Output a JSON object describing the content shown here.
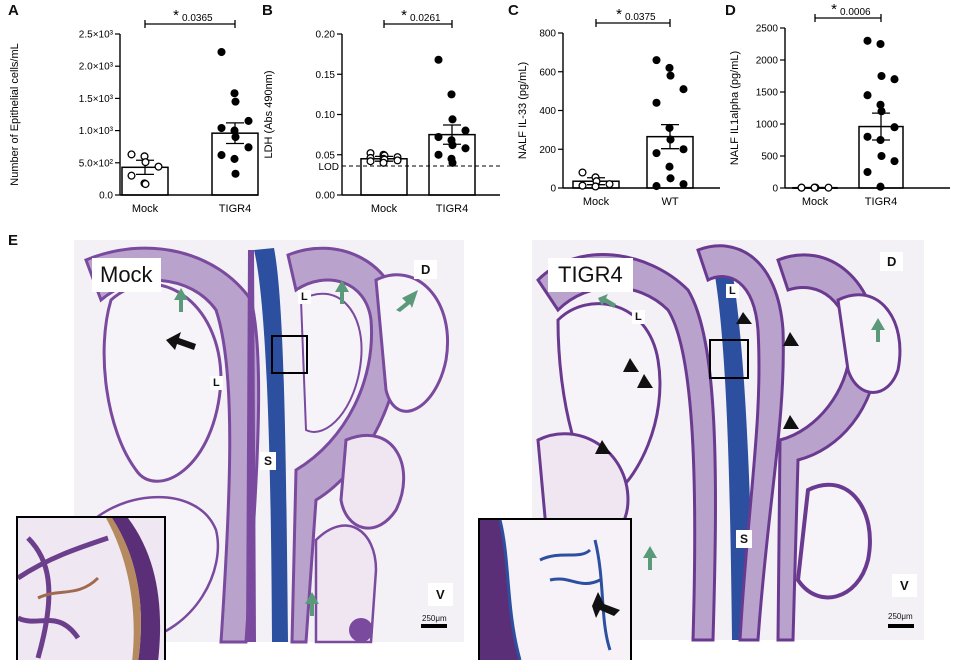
{
  "panel_letters": {
    "a": "A",
    "b": "B",
    "c": "C",
    "d": "D",
    "e": "E"
  },
  "chart_data": [
    {
      "type": "bar",
      "panel": "A",
      "ylabel": "Number of Epithelial cells/mL",
      "categories": [
        "Mock",
        "TIGR4"
      ],
      "ytick_labels": [
        "0.0",
        "5.0×10²",
        "1.0×10³",
        "1.5×10³",
        "2.0×10³",
        "2.5×10³"
      ],
      "yticks": [
        0,
        500,
        1000,
        1500,
        2000,
        2500
      ],
      "ylim": [
        0,
        2500
      ],
      "means": [
        430,
        960
      ],
      "sem": [
        110,
        160
      ],
      "points": [
        [
          630,
          600,
          510,
          440,
          300,
          180,
          170
        ],
        [
          2220,
          1580,
          1450,
          1150,
          1040,
          1000,
          900,
          740,
          620,
          560,
          330
        ]
      ],
      "sig_star": "*",
      "sig_p": "0.0365"
    },
    {
      "type": "bar",
      "panel": "B",
      "ylabel": "LDH (Abs 490nm)",
      "categories": [
        "Mock",
        "TIGR4"
      ],
      "ytick_labels": [
        "0.00",
        "0.05",
        "0.10",
        "0.15",
        "0.20"
      ],
      "yticks": [
        0,
        0.05,
        0.1,
        0.15,
        0.2
      ],
      "ylim": [
        0,
        0.2
      ],
      "means": [
        0.045,
        0.075
      ],
      "sem": [
        0.003,
        0.012
      ],
      "points": [
        [
          0.052,
          0.05,
          0.049,
          0.047,
          0.046,
          0.045,
          0.044,
          0.043,
          0.042,
          0.04
        ],
        [
          0.168,
          0.125,
          0.094,
          0.08,
          0.072,
          0.068,
          0.062,
          0.058,
          0.05,
          0.045,
          0.04
        ]
      ],
      "lod_value": 0.036,
      "lod_label": "LOD",
      "sig_star": "*",
      "sig_p": "0.0261"
    },
    {
      "type": "bar",
      "panel": "C",
      "ylabel": "NALF IL-33 (pg/mL)",
      "categories": [
        "Mock",
        "WT"
      ],
      "ytick_labels": [
        "0",
        "200",
        "400",
        "600",
        "800"
      ],
      "yticks": [
        0,
        200,
        400,
        600,
        800
      ],
      "ylim": [
        0,
        800
      ],
      "means": [
        35,
        265
      ],
      "sem": [
        18,
        62
      ],
      "points": [
        [
          80,
          55,
          35,
          20,
          12,
          8
        ],
        [
          660,
          620,
          580,
          510,
          440,
          310,
          250,
          200,
          180,
          110,
          50,
          20,
          10
        ]
      ],
      "sig_star": "*",
      "sig_p": "0.0375"
    },
    {
      "type": "bar",
      "panel": "D",
      "ylabel": "NALF IL1alpha (pg/mL)",
      "categories": [
        "Mock",
        "TIGR4"
      ],
      "ytick_labels": [
        "0",
        "500",
        "1000",
        "1500",
        "2000",
        "2500"
      ],
      "yticks": [
        0,
        500,
        1000,
        1500,
        2000,
        2500
      ],
      "ylim": [
        0,
        2500
      ],
      "means": [
        5,
        960
      ],
      "sem": [
        3,
        210
      ],
      "points": [
        [
          5,
          5,
          5,
          5,
          5,
          5
        ],
        [
          2300,
          2250,
          1750,
          1700,
          1450,
          1300,
          1200,
          950,
          800,
          750,
          500,
          420,
          250,
          20
        ]
      ],
      "sig_star": "*",
      "sig_p": "0.0006"
    }
  ],
  "micrographs": {
    "left": {
      "title": "Mock",
      "D": "D",
      "V": "V",
      "L1": "L",
      "L2": "L",
      "S": "S",
      "scale": "250μm"
    },
    "right": {
      "title": "TIGR4",
      "D": "D",
      "V": "V",
      "L1": "L",
      "L2": "L",
      "S": "S",
      "scale": "250μm"
    }
  },
  "colors": {
    "tissue": "#7a4a9e",
    "bone": "#2d4fa0",
    "arrow_green": "#5a9a7a",
    "arrow_black": "#111111"
  }
}
